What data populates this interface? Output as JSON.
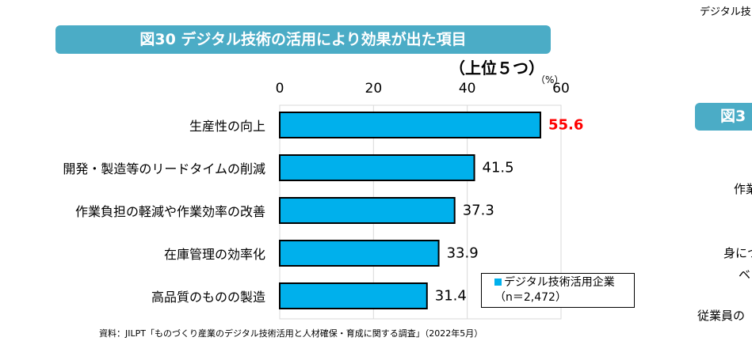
{
  "chart_data": {
    "type": "bar",
    "orientation": "horizontal",
    "title": "図30  デジタル技術の活用により効果が出た項目",
    "subtitle": "（上位５つ）",
    "unit": "（%）",
    "categories": [
      "生産性の向上",
      "開発・製造等のリードタイムの削減",
      "作業負担の軽減や作業効率の改善",
      "在庫管理の効率化",
      "高品質のものの製造"
    ],
    "series": [
      {
        "name": "デジタル技術活用企業",
        "values": [
          55.6,
          41.5,
          37.3,
          33.9,
          31.4
        ]
      }
    ],
    "value_labels": [
      "55.6",
      "41.5",
      "37.3",
      "33.9",
      "31.4"
    ],
    "xlim": [
      0,
      60
    ],
    "xticks": [
      "0",
      "20",
      "40",
      "60"
    ],
    "grid": true,
    "legend": {
      "label": "デジタル技術活用企業",
      "n": "（n＝2,472）",
      "placement": "bottom-right"
    },
    "colors": {
      "bar": "#00b0ec",
      "highlight_label": "#ff0000",
      "banner": "#4bacc6"
    },
    "source": "資料：JILPT「ものづくり産業のデジタル技術活用と人材確保・育成に関する調査」（2022年5月）"
  },
  "side_panel": {
    "top_text": "デジタル技",
    "banner": "図3",
    "texts": [
      "作業",
      "身につ",
      "ベ",
      "従業員の"
    ]
  }
}
